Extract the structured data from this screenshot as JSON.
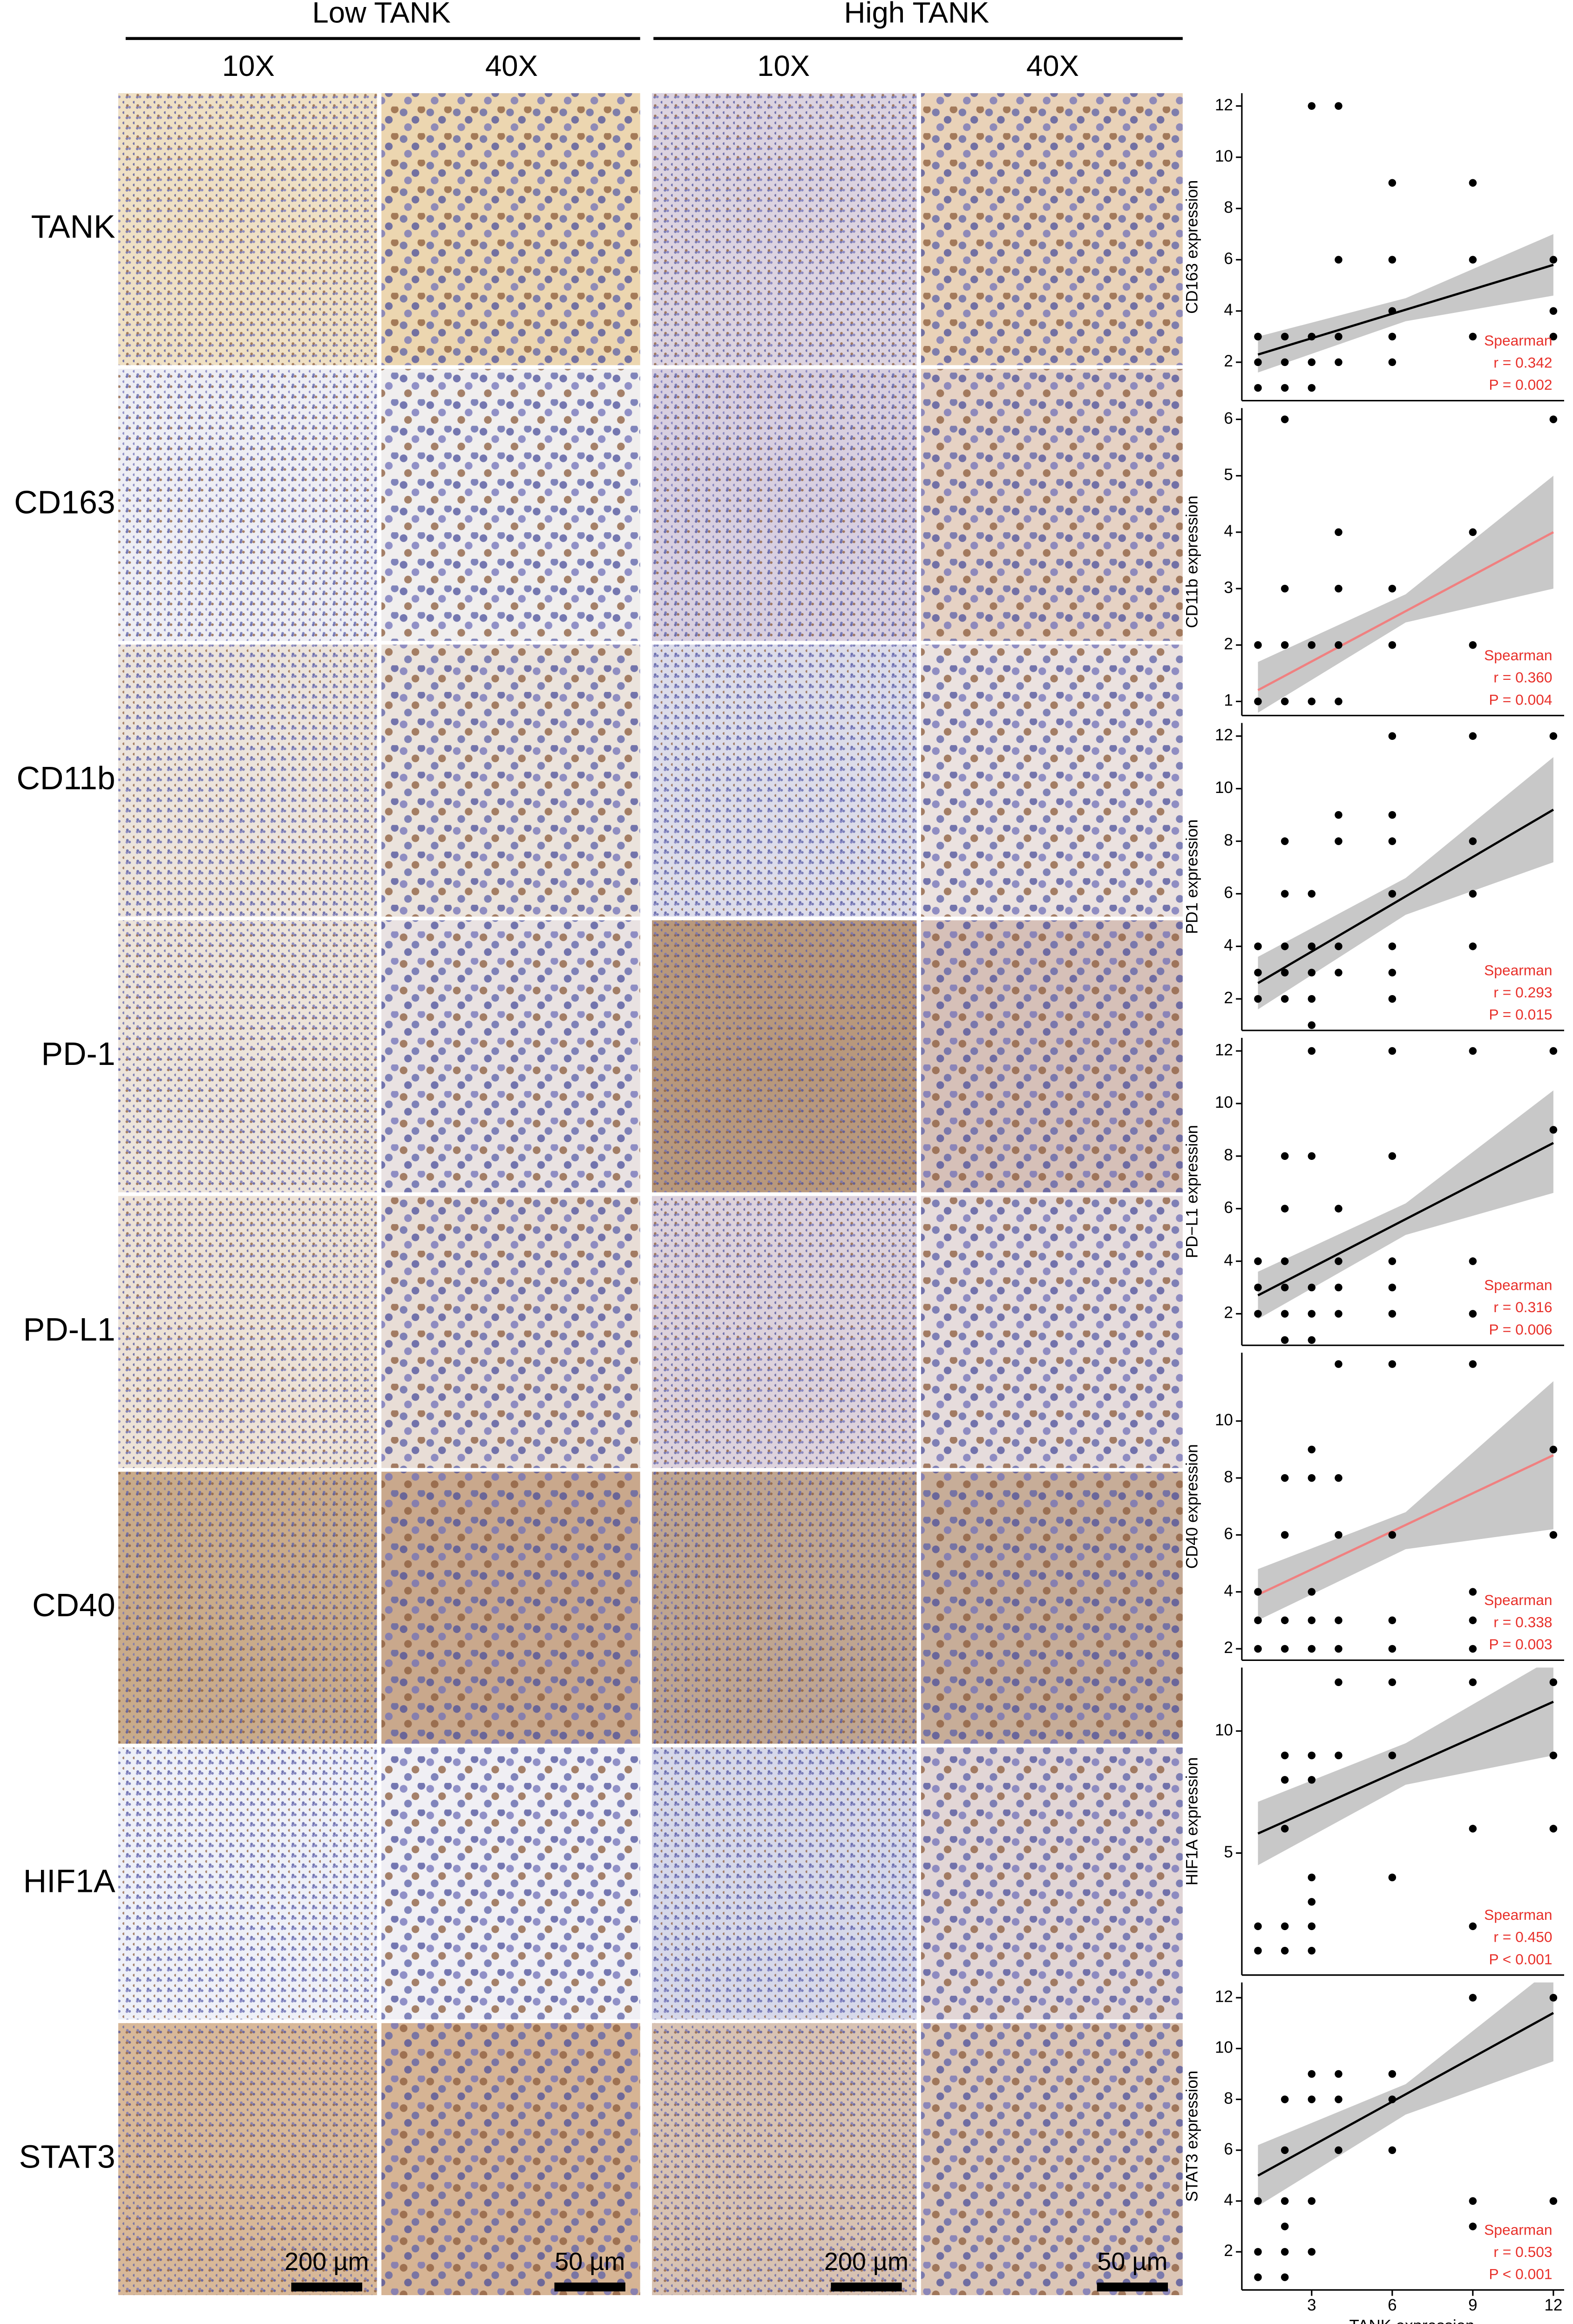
{
  "figure": {
    "groups": [
      "Low TANK",
      "High TANK"
    ],
    "magnifications": [
      "10X",
      "40X",
      "10X",
      "40X"
    ],
    "rows": [
      "TANK",
      "CD163",
      "CD11b",
      "PD-1",
      "PD-L1",
      "CD40",
      "HIF1A",
      "STAT3"
    ],
    "scale_bars": [
      "200 µm",
      "50 µm",
      "200 µm",
      "50 µm"
    ]
  },
  "chart_data": [
    {
      "type": "scatter",
      "y_label": "CD163 expression",
      "xlim": [
        0.4,
        12.4
      ],
      "ylim": [
        0.5,
        12.5
      ],
      "yticks": [
        2,
        4,
        6,
        8,
        10,
        12
      ],
      "color": "#000000",
      "x": [
        1,
        1,
        1,
        2,
        2,
        2,
        3,
        3,
        3,
        3,
        4,
        4,
        4,
        4,
        6,
        6,
        6,
        6,
        6,
        9,
        9,
        9,
        12,
        12,
        12
      ],
      "values": [
        1,
        2,
        3,
        1,
        3,
        2,
        1,
        12,
        3,
        2,
        12,
        6,
        3,
        2,
        9,
        6,
        4,
        3,
        2,
        9,
        3,
        6,
        6,
        4,
        3
      ],
      "fit": {
        "x": [
          1,
          12
        ],
        "y": [
          2.3,
          5.8
        ],
        "color": "#000000"
      },
      "ci": {
        "x": [
          1,
          6.5,
          12
        ],
        "lower": [
          1.6,
          3.6,
          4.6
        ],
        "upper": [
          3.0,
          4.5,
          7.0
        ]
      },
      "annotations": [
        "Spearman",
        "r = 0.342",
        "P = 0.002"
      ],
      "annotation_color": "#e8302a"
    },
    {
      "type": "scatter",
      "y_label": "CD11b expression",
      "xlim": [
        0.4,
        12.4
      ],
      "ylim": [
        0.75,
        6.2
      ],
      "yticks": [
        1,
        2,
        3,
        4,
        5,
        6
      ],
      "color": "#000000",
      "x": [
        1,
        1,
        2,
        2,
        2,
        2,
        3,
        3,
        4,
        4,
        4,
        4,
        6,
        6,
        9,
        9,
        12
      ],
      "values": [
        1,
        2,
        1,
        2,
        3,
        6,
        1,
        2,
        1,
        2,
        3,
        4,
        2,
        3,
        2,
        4,
        6
      ],
      "fit": {
        "x": [
          1,
          12
        ],
        "y": [
          1.2,
          4.0
        ],
        "color": "#f08080"
      },
      "ci": {
        "x": [
          1,
          6.5,
          12
        ],
        "lower": [
          0.8,
          2.4,
          3.0
        ],
        "upper": [
          1.7,
          2.9,
          5.0
        ]
      },
      "annotations": [
        "Spearman",
        "r = 0.360",
        "P = 0.004"
      ],
      "annotation_color": "#e8302a"
    },
    {
      "type": "scatter",
      "y_label": "PD1 expression",
      "xlim": [
        0.4,
        12.4
      ],
      "ylim": [
        0.8,
        12.5
      ],
      "yticks": [
        2,
        4,
        6,
        8,
        10,
        12
      ],
      "color": "#000000",
      "x": [
        1,
        1,
        1,
        2,
        2,
        2,
        2,
        2,
        3,
        3,
        3,
        3,
        3,
        4,
        4,
        4,
        4,
        6,
        6,
        6,
        6,
        6,
        6,
        6,
        9,
        9,
        9,
        9,
        12
      ],
      "values": [
        2,
        3,
        4,
        2,
        3,
        4,
        6,
        8,
        1,
        2,
        3,
        4,
        6,
        3,
        4,
        8,
        9,
        2,
        3,
        4,
        6,
        8,
        9,
        12,
        4,
        6,
        8,
        12,
        12
      ],
      "fit": {
        "x": [
          1,
          12
        ],
        "y": [
          2.6,
          9.2
        ],
        "color": "#000000"
      },
      "ci": {
        "x": [
          1,
          6.5,
          12
        ],
        "lower": [
          1.6,
          5.2,
          7.2
        ],
        "upper": [
          3.6,
          6.6,
          11.2
        ]
      },
      "annotations": [
        "Spearman",
        "r = 0.293",
        "P = 0.015"
      ],
      "annotation_color": "#e8302a"
    },
    {
      "type": "scatter",
      "y_label": "PD−L1 expression",
      "xlim": [
        0.4,
        12.4
      ],
      "ylim": [
        0.8,
        12.5
      ],
      "yticks": [
        2,
        4,
        6,
        8,
        10,
        12
      ],
      "color": "#000000",
      "x": [
        1,
        1,
        1,
        2,
        2,
        2,
        2,
        2,
        2,
        3,
        3,
        3,
        3,
        3,
        4,
        4,
        4,
        4,
        6,
        6,
        6,
        6,
        6,
        9,
        9,
        9,
        12,
        12
      ],
      "values": [
        2,
        3,
        4,
        1,
        2,
        3,
        4,
        6,
        8,
        1,
        2,
        3,
        8,
        12,
        2,
        3,
        4,
        6,
        2,
        3,
        4,
        8,
        12,
        2,
        4,
        12,
        9,
        12
      ],
      "fit": {
        "x": [
          1,
          12
        ],
        "y": [
          2.7,
          8.5
        ],
        "color": "#000000"
      },
      "ci": {
        "x": [
          1,
          6.5,
          12
        ],
        "lower": [
          1.8,
          5.0,
          6.6
        ],
        "upper": [
          3.6,
          6.2,
          10.5
        ]
      },
      "annotations": [
        "Spearman",
        "r = 0.316",
        "P = 0.006"
      ],
      "annotation_color": "#e8302a"
    },
    {
      "type": "scatter",
      "y_label": "CD40 expression",
      "xlim": [
        0.4,
        12.4
      ],
      "ylim": [
        1.6,
        12.4
      ],
      "yticks": [
        2,
        4,
        6,
        8,
        10
      ],
      "color": "#000000",
      "x": [
        1,
        1,
        1,
        2,
        2,
        2,
        2,
        3,
        3,
        3,
        3,
        3,
        4,
        4,
        4,
        4,
        4,
        6,
        6,
        6,
        6,
        9,
        9,
        9,
        9,
        12,
        12
      ],
      "values": [
        2,
        3,
        4,
        2,
        3,
        6,
        8,
        2,
        3,
        4,
        8,
        9,
        2,
        3,
        6,
        8,
        12,
        2,
        3,
        6,
        12,
        2,
        3,
        4,
        12,
        9,
        6
      ],
      "fit": {
        "x": [
          1,
          12
        ],
        "y": [
          3.9,
          8.8
        ],
        "color": "#f08080"
      },
      "ci": {
        "x": [
          1,
          6.5,
          12
        ],
        "lower": [
          3.0,
          5.5,
          6.2
        ],
        "upper": [
          4.8,
          6.8,
          11.4
        ]
      },
      "annotations": [
        "Spearman",
        "r = 0.338",
        "P = 0.003"
      ],
      "annotation_color": "#e8302a"
    },
    {
      "type": "scatter",
      "y_label": "HIF1A expression",
      "xlim": [
        0.4,
        12.4
      ],
      "ylim": [
        0,
        12.6
      ],
      "yticks": [
        5,
        10
      ],
      "color": "#000000",
      "x": [
        1,
        1,
        2,
        2,
        2,
        2,
        2,
        3,
        3,
        3,
        3,
        3,
        3,
        4,
        4,
        6,
        6,
        6,
        9,
        9,
        9,
        12,
        12,
        12
      ],
      "values": [
        1,
        2,
        1,
        2,
        6,
        8,
        9,
        1,
        2,
        3,
        4,
        8,
        9,
        9,
        12,
        4,
        9,
        12,
        2,
        6,
        12,
        6,
        9,
        12
      ],
      "fit": {
        "x": [
          1,
          12
        ],
        "y": [
          5.8,
          11.2
        ],
        "color": "#000000"
      },
      "ci": {
        "x": [
          1,
          6.5,
          12
        ],
        "lower": [
          4.5,
          7.8,
          9.0
        ],
        "upper": [
          7.1,
          9.5,
          13.0
        ]
      },
      "annotations": [
        "Spearman",
        "r = 0.450",
        "P < 0.001"
      ],
      "annotation_color": "#e8302a"
    },
    {
      "type": "scatter",
      "y_label": "STAT3 expression",
      "x_label": "TANK expression",
      "xlim": [
        0.4,
        12.4
      ],
      "ylim": [
        0.5,
        12.6
      ],
      "xticks": [
        3,
        6,
        9,
        12
      ],
      "yticks": [
        2,
        4,
        6,
        8,
        10,
        12
      ],
      "color": "#000000",
      "x": [
        1,
        1,
        1,
        2,
        2,
        2,
        2,
        2,
        2,
        3,
        3,
        3,
        3,
        4,
        4,
        4,
        6,
        6,
        6,
        9,
        9,
        9,
        12,
        12
      ],
      "values": [
        1,
        2,
        4,
        1,
        2,
        3,
        4,
        6,
        8,
        2,
        4,
        8,
        9,
        6,
        8,
        9,
        6,
        8,
        9,
        3,
        4,
        12,
        4,
        12
      ],
      "fit": {
        "x": [
          1,
          12
        ],
        "y": [
          5.0,
          11.4
        ],
        "color": "#000000"
      },
      "ci": {
        "x": [
          1,
          6.5,
          12
        ],
        "lower": [
          3.8,
          7.4,
          9.5
        ],
        "upper": [
          6.2,
          8.6,
          13.2
        ]
      },
      "annotations": [
        "Spearman",
        "r = 0.503",
        "P < 0.001"
      ],
      "annotation_color": "#e8302a"
    }
  ]
}
